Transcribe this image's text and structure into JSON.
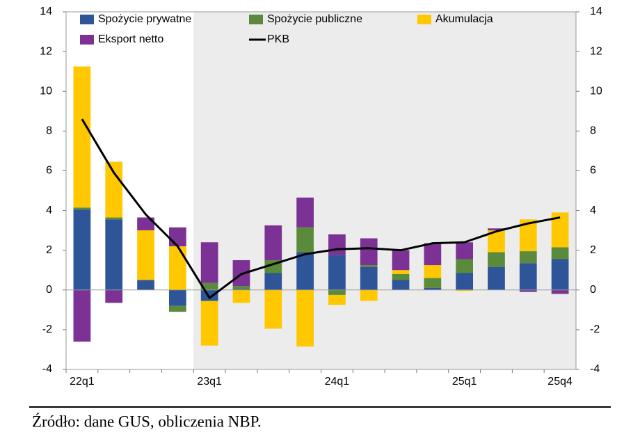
{
  "chart_data": {
    "type": "bar",
    "categories": [
      "22q1",
      null,
      null,
      null,
      "23q1",
      null,
      null,
      null,
      "24q1",
      null,
      null,
      null,
      "25q1",
      null,
      null,
      "25q4"
    ],
    "series": [
      {
        "name": "Spożycie prywatne",
        "color": "#2e5597",
        "values": [
          4.05,
          3.55,
          0.5,
          -0.8,
          -0.55,
          0.05,
          0.85,
          1.9,
          1.75,
          1.15,
          0.5,
          0.1,
          0.85,
          1.15,
          1.35,
          1.55
        ]
      },
      {
        "name": "Spożycie publiczne",
        "color": "#5b8a3c",
        "values": [
          0.1,
          0.1,
          0,
          -0.3,
          0.35,
          0.15,
          0.65,
          1.25,
          -0.25,
          0.1,
          0.3,
          0.5,
          0.7,
          0.75,
          0.6,
          0.6
        ]
      },
      {
        "name": "Akumulacja",
        "color": "#ffc800",
        "values": [
          7.1,
          2.8,
          2.5,
          2.2,
          -2.25,
          -0.65,
          -1.95,
          -2.85,
          -0.5,
          -0.55,
          0.2,
          0.65,
          -0.05,
          1.1,
          1.6,
          1.75
        ]
      },
      {
        "name": "Eksport netto",
        "color": "#7b3294",
        "values": [
          -2.6,
          -0.65,
          0.65,
          0.95,
          2.05,
          1.3,
          1.75,
          1.5,
          1.05,
          1.35,
          1.0,
          1.1,
          0.85,
          0.1,
          -0.1,
          -0.2
        ]
      },
      {
        "name": "PKB",
        "color": "#000000",
        "type": "line",
        "values": [
          8.6,
          5.9,
          3.8,
          2.2,
          -0.4,
          0.8,
          1.3,
          1.8,
          2.05,
          2.1,
          2.0,
          2.35,
          2.4,
          2.95,
          3.35,
          3.65
        ]
      }
    ],
    "ylim": [
      -4,
      14
    ],
    "yticks": [
      -4,
      -2,
      0,
      2,
      4,
      6,
      8,
      10,
      12,
      14
    ],
    "y2lim": [
      -4,
      14
    ],
    "y2ticks": [
      -4,
      -2,
      0,
      2,
      4,
      6,
      8,
      10,
      12,
      14
    ],
    "note": "Źródło: dane GUS, obliczenia NBP."
  }
}
